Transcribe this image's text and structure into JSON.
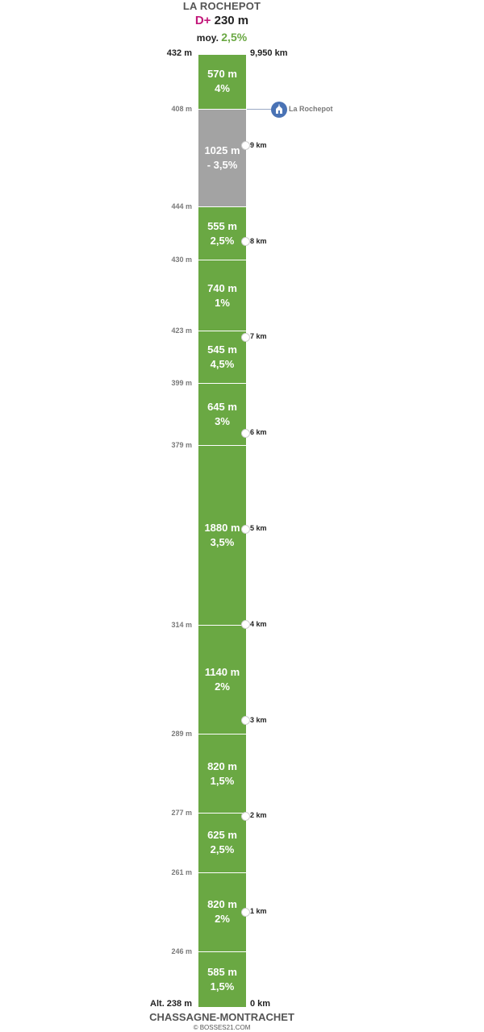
{
  "header": {
    "summit_name": "LA ROCHEPOT",
    "dplus_prefix": "D+",
    "dplus_value": "230 m",
    "avg_prefix": "moy.",
    "avg_value": "2,5%"
  },
  "top_altitude_label": "432 m",
  "top_distance_label": "9,950 km",
  "segments": [
    {
      "length": "570 m",
      "grade": "4%",
      "length_m": 570,
      "type": "climb"
    },
    {
      "length": "1025 m",
      "grade": "- 3,5%",
      "length_m": 1025,
      "type": "descent"
    },
    {
      "length": "555 m",
      "grade": "2,5%",
      "length_m": 555,
      "type": "climb"
    },
    {
      "length": "740 m",
      "grade": "1%",
      "length_m": 740,
      "type": "climb"
    },
    {
      "length": "545 m",
      "grade": "4,5%",
      "length_m": 545,
      "type": "climb"
    },
    {
      "length": "645 m",
      "grade": "3%",
      "length_m": 645,
      "type": "climb"
    },
    {
      "length": "1880 m",
      "grade": "3,5%",
      "length_m": 1880,
      "type": "climb"
    },
    {
      "length": "1140 m",
      "grade": "2%",
      "length_m": 1140,
      "type": "climb"
    },
    {
      "length": "820 m",
      "grade": "1,5%",
      "length_m": 820,
      "type": "climb"
    },
    {
      "length": "625 m",
      "grade": "2,5%",
      "length_m": 625,
      "type": "climb"
    },
    {
      "length": "820 m",
      "grade": "2%",
      "length_m": 820,
      "type": "climb"
    },
    {
      "length": "585 m",
      "grade": "1,5%",
      "length_m": 585,
      "type": "climb"
    }
  ],
  "boundary_altitudes": [
    "408 m",
    "444 m",
    "430 m",
    "423 m",
    "399 m",
    "379 m",
    "314 m",
    "289 m",
    "277 m",
    "261 m",
    "246 m"
  ],
  "km_markers": [
    {
      "label": "1 km",
      "km": 1
    },
    {
      "label": "2 km",
      "km": 2
    },
    {
      "label": "3 km",
      "km": 3
    },
    {
      "label": "4 km",
      "km": 4
    },
    {
      "label": "5 km",
      "km": 5
    },
    {
      "label": "6 km",
      "km": 6
    },
    {
      "label": "7 km",
      "km": 7
    },
    {
      "label": "8 km",
      "km": 8
    },
    {
      "label": "9 km",
      "km": 9
    }
  ],
  "start_distance_label": "0 km",
  "start_altitude_label": "Alt. 238 m",
  "poi": {
    "label": "La Rochepot",
    "icon": "church-icon",
    "km": 9.38
  },
  "footer": {
    "start_name": "CHASSAGNE-MONTRACHET",
    "copyright": "© BOSSES21.COM"
  },
  "colors": {
    "climb": "#6aa843",
    "descent": "#a3a3a3",
    "dplus": "#c2187a",
    "avg": "#6aa843",
    "poi": "#4a73b5"
  }
}
